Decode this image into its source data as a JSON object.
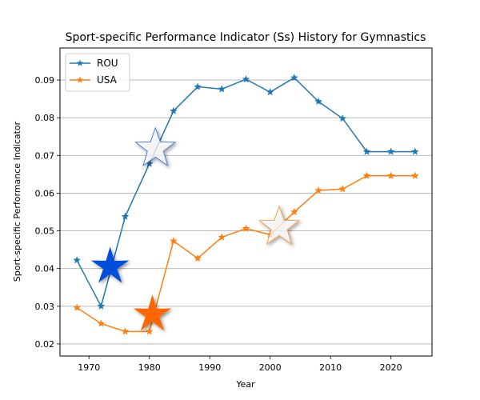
{
  "chart_data": {
    "type": "line",
    "title": "Sport-specific Performance Indicator (Ss) History for Gymnastics",
    "xlabel": "Year",
    "ylabel": "Sport-specific Performance Indicator",
    "xlim": [
      1965.2,
      2026.8
    ],
    "ylim": [
      0.0168,
      0.0985
    ],
    "xticks": [
      1970,
      1980,
      1990,
      2000,
      2010,
      2020
    ],
    "xtick_labels": [
      "1970",
      "1980",
      "1990",
      "2000",
      "2010",
      "2020"
    ],
    "yticks": [
      0.02,
      0.03,
      0.04,
      0.05,
      0.06,
      0.07,
      0.08,
      0.09
    ],
    "ytick_labels": [
      "0.02",
      "0.03",
      "0.04",
      "0.05",
      "0.06",
      "0.07",
      "0.08",
      "0.09"
    ],
    "grid": "y",
    "legend_placement": "top-left",
    "series": [
      {
        "name": "ROU",
        "color": "#1f77b4",
        "marker": "star",
        "x": [
          1968,
          1972,
          1976,
          1980,
          1984,
          1988,
          1992,
          1996,
          2000,
          2004,
          2008,
          2012,
          2016,
          2020,
          2024
        ],
        "y": [
          0.0422,
          0.03,
          0.0538,
          0.0678,
          0.0818,
          0.0882,
          0.0876,
          0.0902,
          0.0868,
          0.0906,
          0.0843,
          0.0798,
          0.071,
          0.071,
          0.071
        ]
      },
      {
        "name": "USA",
        "color": "#ff7f0e",
        "marker": "star",
        "x": [
          1968,
          1972,
          1976,
          1980,
          1984,
          1988,
          1992,
          1996,
          2000,
          2004,
          2008,
          2012,
          2016,
          2020,
          2024
        ],
        "y": [
          0.0296,
          0.0254,
          0.0233,
          0.0233,
          0.0473,
          0.0427,
          0.0483,
          0.0506,
          0.049,
          0.055,
          0.0607,
          0.0611,
          0.0646,
          0.0646,
          0.0646
        ]
      }
    ],
    "annotations": [
      {
        "kind": "filled-star",
        "color": "#0050dc",
        "x": 1973.5,
        "y": 0.0405
      },
      {
        "kind": "filled-star",
        "color": "#ff6600",
        "x": 1980.5,
        "y": 0.0278
      },
      {
        "kind": "outline-star",
        "color": "#4a7fd6",
        "x": 1981.0,
        "y": 0.0718
      },
      {
        "kind": "outline-star",
        "color": "#f0a050",
        "x": 2001.5,
        "y": 0.051
      }
    ]
  }
}
